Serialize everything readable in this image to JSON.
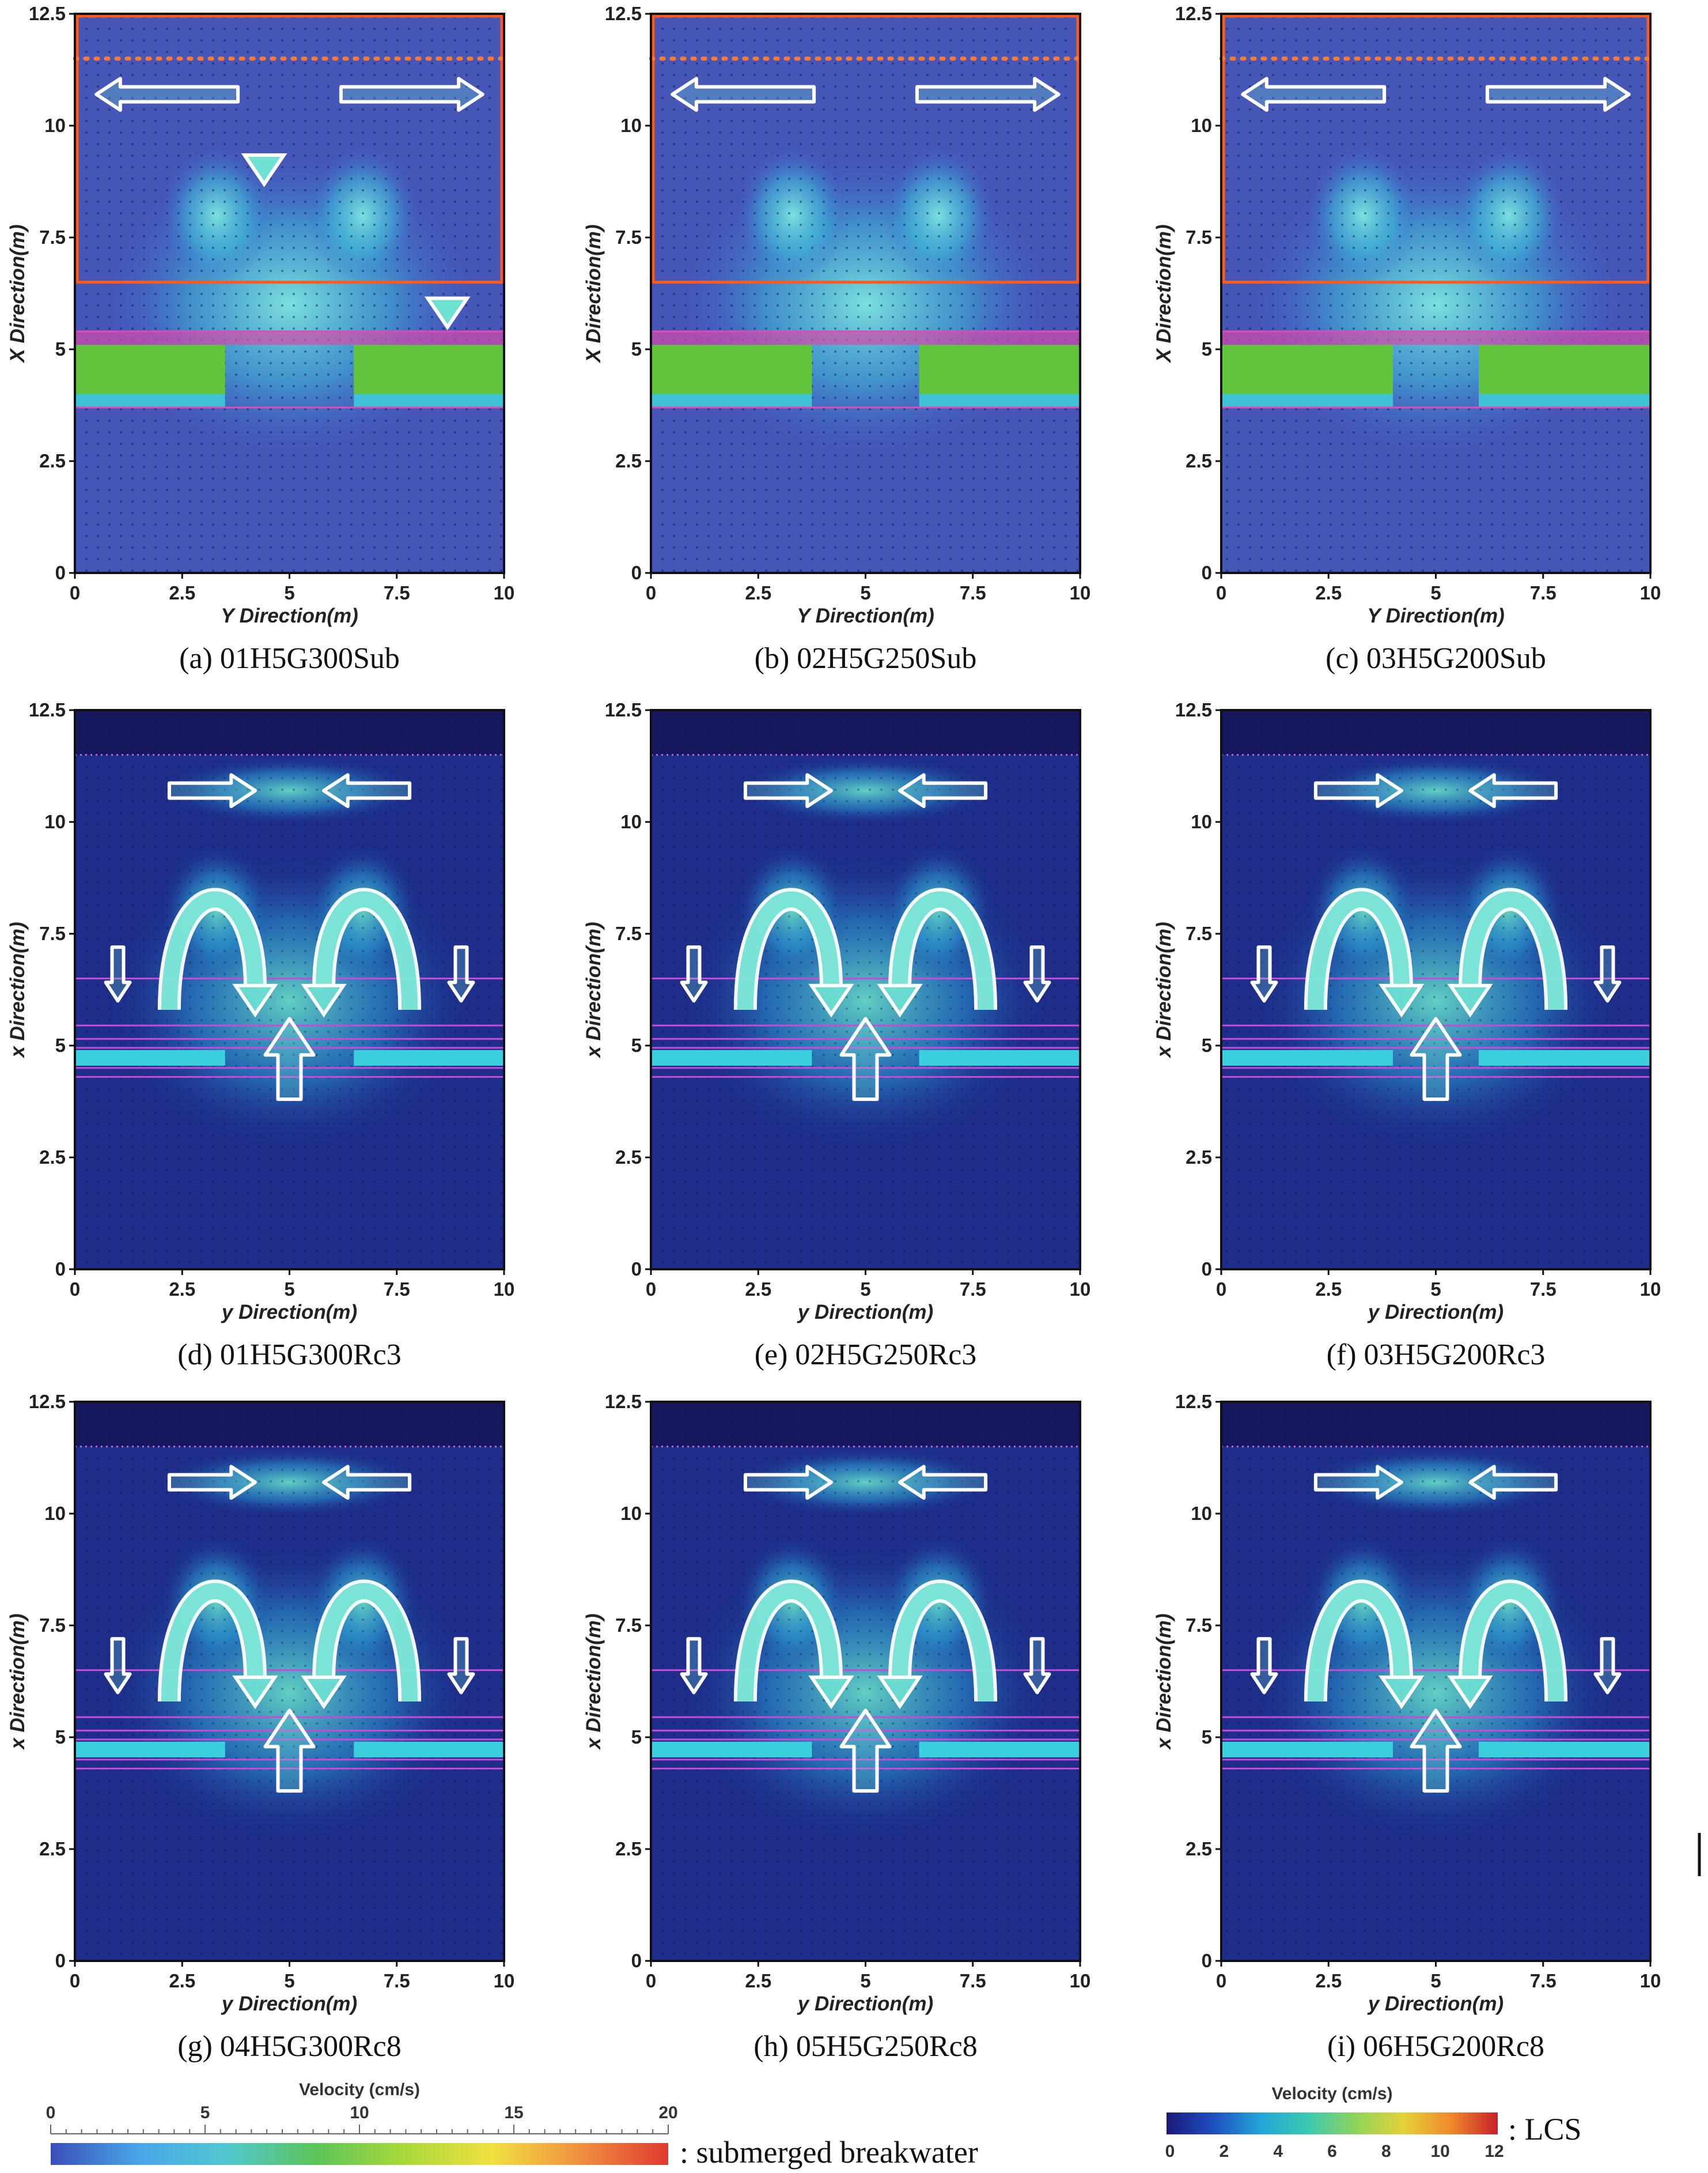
{
  "figure": {
    "panels": [
      {
        "id": "a",
        "caption": "(a) 01H5G300Sub",
        "ylabel": "X Direction(m)",
        "xlabel": "Y Direction(m)",
        "style": "sub",
        "gap_m": 3.0
      },
      {
        "id": "b",
        "caption": "(b) 02H5G250Sub",
        "ylabel": "X Direction(m)",
        "xlabel": "Y Direction(m)",
        "style": "sub",
        "gap_m": 2.5
      },
      {
        "id": "c",
        "caption": "(c) 03H5G200Sub",
        "ylabel": "X Direction(m)",
        "xlabel": "Y Direction(m)",
        "style": "sub",
        "gap_m": 2.0
      },
      {
        "id": "d",
        "caption": "(d) 01H5G300Rc3",
        "ylabel": "x Direction(m)",
        "xlabel": "y Direction(m)",
        "style": "lcs",
        "gap_m": 3.0
      },
      {
        "id": "e",
        "caption": "(e) 02H5G250Rc3",
        "ylabel": "x Direction(m)",
        "xlabel": "y Direction(m)",
        "style": "lcs",
        "gap_m": 2.5
      },
      {
        "id": "f",
        "caption": "(f) 03H5G200Rc3",
        "ylabel": "x Direction(m)",
        "xlabel": "y Direction(m)",
        "style": "lcs",
        "gap_m": 2.0
      },
      {
        "id": "g",
        "caption": "(g) 04H5G300Rc8",
        "ylabel": "x Direction(m)",
        "xlabel": "y Direction(m)",
        "style": "lcs",
        "gap_m": 3.0
      },
      {
        "id": "h",
        "caption": "(h) 05H5G250Rc8",
        "ylabel": "x Direction(m)",
        "xlabel": "y Direction(m)",
        "style": "lcs",
        "gap_m": 2.5
      },
      {
        "id": "i",
        "caption": "(i) 06H5G200Rc8",
        "ylabel": "x Direction(m)",
        "xlabel": "y Direction(m)",
        "style": "lcs",
        "gap_m": 2.0
      }
    ],
    "colorbars": [
      {
        "id": "sub",
        "title": "Velocity (cm/s)",
        "ticks": [
          "0",
          "5",
          "10",
          "15",
          "20"
        ],
        "label": ": submerged breakwater",
        "colors": [
          "#3a4fb8",
          "#4aa6e8",
          "#50c8d0",
          "#5cc45a",
          "#a8d83a",
          "#f0e040",
          "#f09040",
          "#e03a30"
        ]
      },
      {
        "id": "lcs",
        "title": "Velocity (cm/s)",
        "ticks": [
          "0",
          "2",
          "4",
          "6",
          "8",
          "10",
          "12"
        ],
        "label": ": LCS",
        "colors": [
          "#1a1a7a",
          "#1f4fc0",
          "#23a6d8",
          "#3cc9b0",
          "#8fd45a",
          "#e3d23a",
          "#f08a2c",
          "#c8202a"
        ]
      }
    ]
  },
  "chart_data": [
    {
      "type": "heatmap",
      "title": "",
      "xlabel": "Y Direction(m)",
      "ylabel": "X Direction(m)",
      "xlim": [
        0,
        10
      ],
      "ylim": [
        0,
        12.5
      ],
      "x_ticks": [
        "0",
        "2.5",
        "5",
        "7.5",
        "10"
      ],
      "y_ticks": [
        "0",
        "2.5",
        "5",
        "7.5",
        "10",
        "12.5"
      ]
    },
    {
      "type": "heatmap",
      "title": "",
      "xlabel": "y Direction(m)",
      "ylabel": "x Direction(m)",
      "xlim": [
        0,
        10
      ],
      "ylim": [
        0,
        12.5
      ],
      "x_ticks": [
        "0",
        "2.5",
        "5",
        "7.5",
        "10"
      ],
      "y_ticks": [
        "0",
        "2.5",
        "5",
        "7.5",
        "10",
        "12.5"
      ]
    }
  ]
}
